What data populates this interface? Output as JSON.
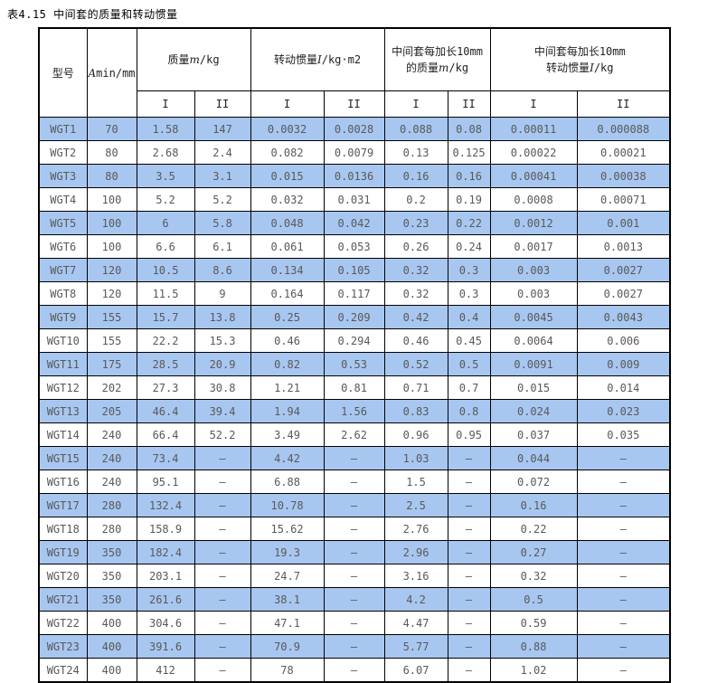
{
  "page": {
    "title": "表4.15 中间套的质量和转动惯量"
  },
  "colors": {
    "row_highlight": "#a8c7f0",
    "grid_border": "#000000",
    "data_text": "#595959"
  },
  "table": {
    "header": {
      "model": "型号",
      "length": {
        "sym": "A",
        "rest": "min/mm"
      },
      "group_mass": {
        "prefix": "质量",
        "sym": "m",
        "suffix": "/kg"
      },
      "group_inertia": {
        "prefix": "转动惯量",
        "sym": "I",
        "suffix": "/kg·m2"
      },
      "group_ext_mass": {
        "line1": "中间套每加长10mm",
        "prefix": "的质量",
        "sym": "m",
        "suffix": "/kg"
      },
      "group_ext_inertia": {
        "line1": "中间套每加长10mm",
        "prefix": "转动惯量",
        "sym": "I",
        "suffix": "/kg"
      },
      "sub": [
        "I",
        "II"
      ]
    },
    "rows": [
      [
        "WGT1",
        "70",
        "1.58",
        "147",
        "0.0032",
        "0.0028",
        "0.088",
        "0.08",
        "0.00011",
        "0.000088"
      ],
      [
        "WGT2",
        "80",
        "2.68",
        "2.4",
        "0.082",
        "0.0079",
        "0.13",
        "0.125",
        "0.00022",
        "0.00021"
      ],
      [
        "WGT3",
        "80",
        "3.5",
        "3.1",
        "0.015",
        "0.0136",
        "0.16",
        "0.16",
        "0.00041",
        "0.00038"
      ],
      [
        "WGT4",
        "100",
        "5.2",
        "5.2",
        "0.032",
        "0.031",
        "0.2",
        "0.19",
        "0.0008",
        "0.00071"
      ],
      [
        "WGT5",
        "100",
        "6",
        "5.8",
        "0.048",
        "0.042",
        "0.23",
        "0.22",
        "0.0012",
        "0.001"
      ],
      [
        "WGT6",
        "100",
        "6.6",
        "6.1",
        "0.061",
        "0.053",
        "0.26",
        "0.24",
        "0.0017",
        "0.0013"
      ],
      [
        "WGT7",
        "120",
        "10.5",
        "8.6",
        "0.134",
        "0.105",
        "0.32",
        "0.3",
        "0.003",
        "0.0027"
      ],
      [
        "WGT8",
        "120",
        "11.5",
        "9",
        "0.164",
        "0.117",
        "0.32",
        "0.3",
        "0.003",
        "0.0027"
      ],
      [
        "WGT9",
        "155",
        "15.7",
        "13.8",
        "0.25",
        "0.209",
        "0.42",
        "0.4",
        "0.0045",
        "0.0043"
      ],
      [
        "WGT10",
        "155",
        "22.2",
        "15.3",
        "0.46",
        "0.294",
        "0.46",
        "0.45",
        "0.0064",
        "0.006"
      ],
      [
        "WGT11",
        "175",
        "28.5",
        "20.9",
        "0.82",
        "0.53",
        "0.52",
        "0.5",
        "0.0091",
        "0.009"
      ],
      [
        "WGT12",
        "202",
        "27.3",
        "30.8",
        "1.21",
        "0.81",
        "0.71",
        "0.7",
        "0.015",
        "0.014"
      ],
      [
        "WGT13",
        "205",
        "46.4",
        "39.4",
        "1.94",
        "1.56",
        "0.83",
        "0.8",
        "0.024",
        "0.023"
      ],
      [
        "WGT14",
        "240",
        "66.4",
        "52.2",
        "3.49",
        "2.62",
        "0.96",
        "0.95",
        "0.037",
        "0.035"
      ],
      [
        "WGT15",
        "240",
        "73.4",
        "–",
        "4.42",
        "–",
        "1.03",
        "–",
        "0.044",
        "–"
      ],
      [
        "WGT16",
        "240",
        "95.1",
        "–",
        "6.88",
        "–",
        "1.5",
        "–",
        "0.072",
        "–"
      ],
      [
        "WGT17",
        "280",
        "132.4",
        "–",
        "10.78",
        "–",
        "2.5",
        "–",
        "0.16",
        "–"
      ],
      [
        "WGT18",
        "280",
        "158.9",
        "–",
        "15.62",
        "–",
        "2.76",
        "–",
        "0.22",
        "–"
      ],
      [
        "WGT19",
        "350",
        "182.4",
        "–",
        "19.3",
        "–",
        "2.96",
        "–",
        "0.27",
        "–"
      ],
      [
        "WGT20",
        "350",
        "203.1",
        "–",
        "24.7",
        "–",
        "3.16",
        "–",
        "0.32",
        "–"
      ],
      [
        "WGT21",
        "350",
        "261.6",
        "–",
        "38.1",
        "–",
        "4.2",
        "–",
        "0.5",
        "–"
      ],
      [
        "WGT22",
        "400",
        "304.6",
        "–",
        "47.1",
        "–",
        "4.47",
        "–",
        "0.59",
        "–"
      ],
      [
        "WGT23",
        "400",
        "391.6",
        "–",
        "70.9",
        "–",
        "5.77",
        "–",
        "0.88",
        "–"
      ],
      [
        "WGT24",
        "400",
        "412",
        "–",
        "78",
        "–",
        "6.07",
        "–",
        "1.02",
        "–"
      ]
    ]
  }
}
